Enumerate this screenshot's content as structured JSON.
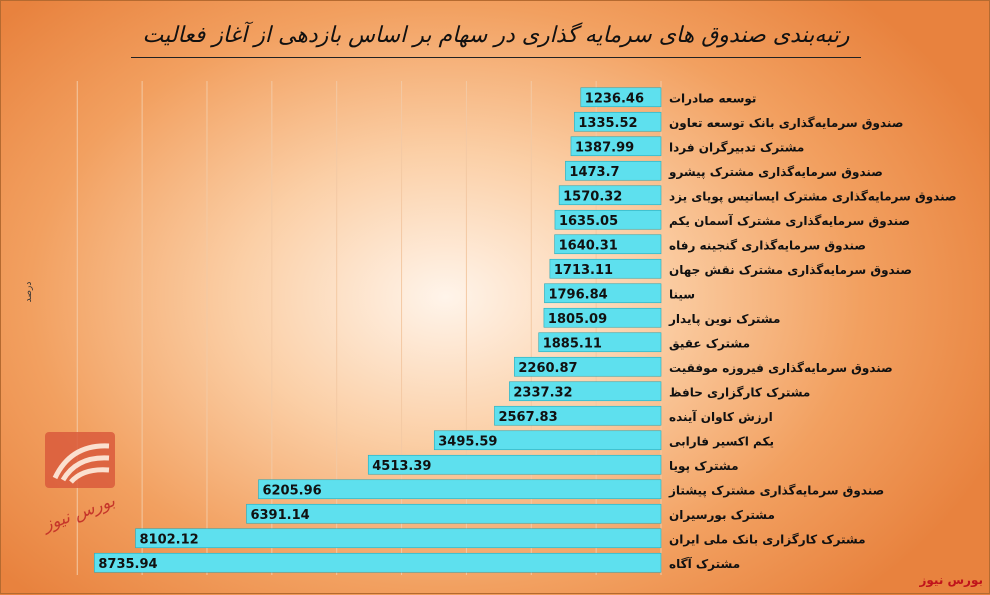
{
  "title": "رتبه‌بندی صندوق های سرمایه گذاری در سهام بر اساس بازدهی از آغاز فعالیت",
  "unit_label": "درصد",
  "logo_text": "بورس نیوز",
  "watermark": "بورس نیوز",
  "colors": {
    "bar": "#5ee0ee",
    "bar_border": "#2aa9b8",
    "grid": "#f3c9a4",
    "text": "#111111",
    "watermark": "#c0141b"
  },
  "chart_data": {
    "type": "bar",
    "orientation": "horizontal",
    "title": "رتبه‌بندی صندوق های سرمایه گذاری در سهام بر اساس بازدهی از آغاز فعالیت",
    "ylabel": "درصد",
    "grid": true,
    "xlim": [
      0,
      9000
    ],
    "categories": [
      "توسعه صادرات",
      "صندوق سرمایه‌گذاری بانک توسعه تعاون",
      "مشترک تدبیرگران فردا",
      "صندوق سرمایه‌گذاری مشترک پیشرو",
      "صندوق سرمایه‌گذاری مشترک ایساتیس پویای یزد",
      "صندوق سرمایه‌گذاری مشترک آسمان یکم",
      "صندوق سرمایه‌گذاری گنجینه رفاه",
      "صندوق سرمایه‌گذاری مشترک نقش جهان",
      "سینا",
      "مشترک نوین پایدار",
      "مشترک عقیق",
      "صندوق سرمایه‌گذاری فیروزه موفقیت",
      "مشترک کارگزاری حافظ",
      "ارزش کاوان آینده",
      "یکم اکسیر فارابی",
      "مشترک پویا",
      "صندوق سرمایه‌گذاری مشترک پیشتاز",
      "مشترک بورسیران",
      "مشترک کارگزاری بانک ملی ایران",
      "مشترک آگاه"
    ],
    "values": [
      1236.46,
      1335.52,
      1387.99,
      1473.7,
      1570.32,
      1635.05,
      1640.31,
      1713.11,
      1796.84,
      1805.09,
      1885.11,
      2260.87,
      2337.32,
      2567.83,
      3495.59,
      4513.39,
      6205.96,
      6391.14,
      8102.12,
      8735.94
    ],
    "value_labels": [
      "1236.46",
      "1335.52",
      "1387.99",
      "1473.7",
      "1570.32",
      "1635.05",
      "1640.31",
      "1713.11",
      "1796.84",
      "1805.09",
      "1885.11",
      "2260.87",
      "2337.32",
      "2567.83",
      "3495.59",
      "4513.39",
      "6205.96",
      "6391.14",
      "8102.12",
      "8735.94"
    ]
  }
}
